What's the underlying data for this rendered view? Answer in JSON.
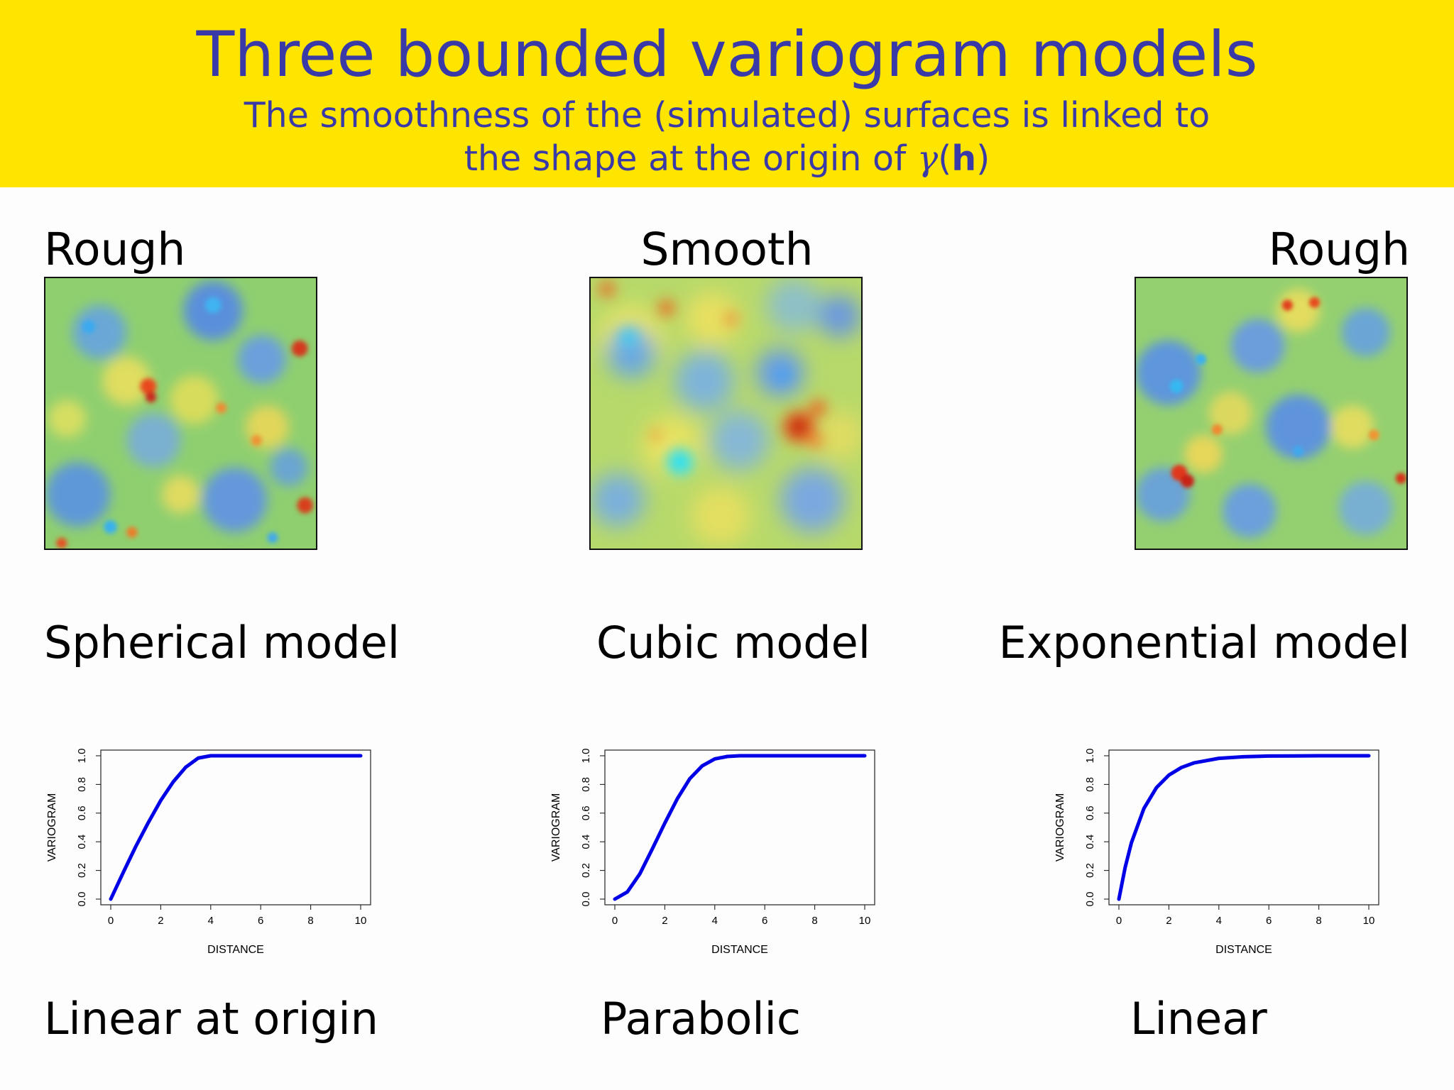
{
  "header": {
    "title": "Three bounded variogram models",
    "subtitle_line1": "The smoothness of the (simulated) surfaces is linked to",
    "subtitle_line2_prefix": "the shape at the origin of ",
    "subtitle_gamma": "γ",
    "subtitle_open": "(",
    "subtitle_h": "h",
    "subtitle_close": ")"
  },
  "panels": [
    {
      "smoothness": "Rough",
      "model": "Spherical model",
      "origin": "Linear at origin",
      "surface_palette": "rough"
    },
    {
      "smoothness": "Smooth",
      "model": "Cubic model",
      "origin": "Parabolic",
      "surface_palette": "smooth"
    },
    {
      "smoothness": "Rough",
      "model": "Exponential model",
      "origin": "Linear",
      "surface_palette": "rough"
    }
  ],
  "colors": {
    "header_background": "#fde500",
    "header_text": "#3a39a8",
    "curve": "#0000e6"
  },
  "chart_data": [
    {
      "type": "line",
      "model": "spherical",
      "xlabel": "DISTANCE",
      "ylabel": "VARIOGRAM",
      "xlim": [
        0,
        10
      ],
      "ylim": [
        0,
        1
      ],
      "xticks": [
        "0",
        "2",
        "4",
        "6",
        "8",
        "10"
      ],
      "yticks": [
        "0.0",
        "0.2",
        "0.4",
        "0.6",
        "0.8",
        "1.0"
      ],
      "x": [
        0,
        0.5,
        1,
        1.5,
        2,
        2.5,
        3,
        3.5,
        4,
        5,
        6,
        7,
        8,
        9,
        10
      ],
      "y": [
        0,
        0.186,
        0.367,
        0.533,
        0.688,
        0.818,
        0.92,
        0.984,
        1,
        1,
        1,
        1,
        1,
        1,
        1
      ]
    },
    {
      "type": "line",
      "model": "cubic",
      "xlabel": "DISTANCE",
      "ylabel": "VARIOGRAM",
      "xlim": [
        0,
        10
      ],
      "ylim": [
        0,
        1
      ],
      "xticks": [
        "0",
        "2",
        "4",
        "6",
        "8",
        "10"
      ],
      "yticks": [
        "0.0",
        "0.2",
        "0.4",
        "0.6",
        "0.8",
        "1.0"
      ],
      "x": [
        0,
        0.5,
        1,
        1.5,
        2,
        2.5,
        3,
        3.5,
        4,
        4.5,
        5,
        5.5,
        6,
        7,
        8,
        9,
        10
      ],
      "y": [
        0,
        0.05,
        0.176,
        0.35,
        0.53,
        0.7,
        0.84,
        0.93,
        0.978,
        0.995,
        1,
        1,
        1,
        1,
        1,
        1,
        1
      ]
    },
    {
      "type": "line",
      "model": "exponential",
      "xlabel": "DISTANCE",
      "ylabel": "VARIOGRAM",
      "xlim": [
        0,
        10
      ],
      "ylim": [
        0,
        1
      ],
      "xticks": [
        "0",
        "2",
        "4",
        "6",
        "8",
        "10"
      ],
      "yticks": [
        "0.0",
        "0.2",
        "0.4",
        "0.6",
        "0.8",
        "1.0"
      ],
      "x": [
        0,
        0.25,
        0.5,
        1,
        1.5,
        2,
        2.5,
        3,
        4,
        5,
        6,
        7,
        8,
        9,
        10
      ],
      "y": [
        0,
        0.221,
        0.393,
        0.632,
        0.777,
        0.865,
        0.918,
        0.95,
        0.982,
        0.993,
        0.998,
        0.999,
        1,
        1,
        1
      ]
    }
  ]
}
